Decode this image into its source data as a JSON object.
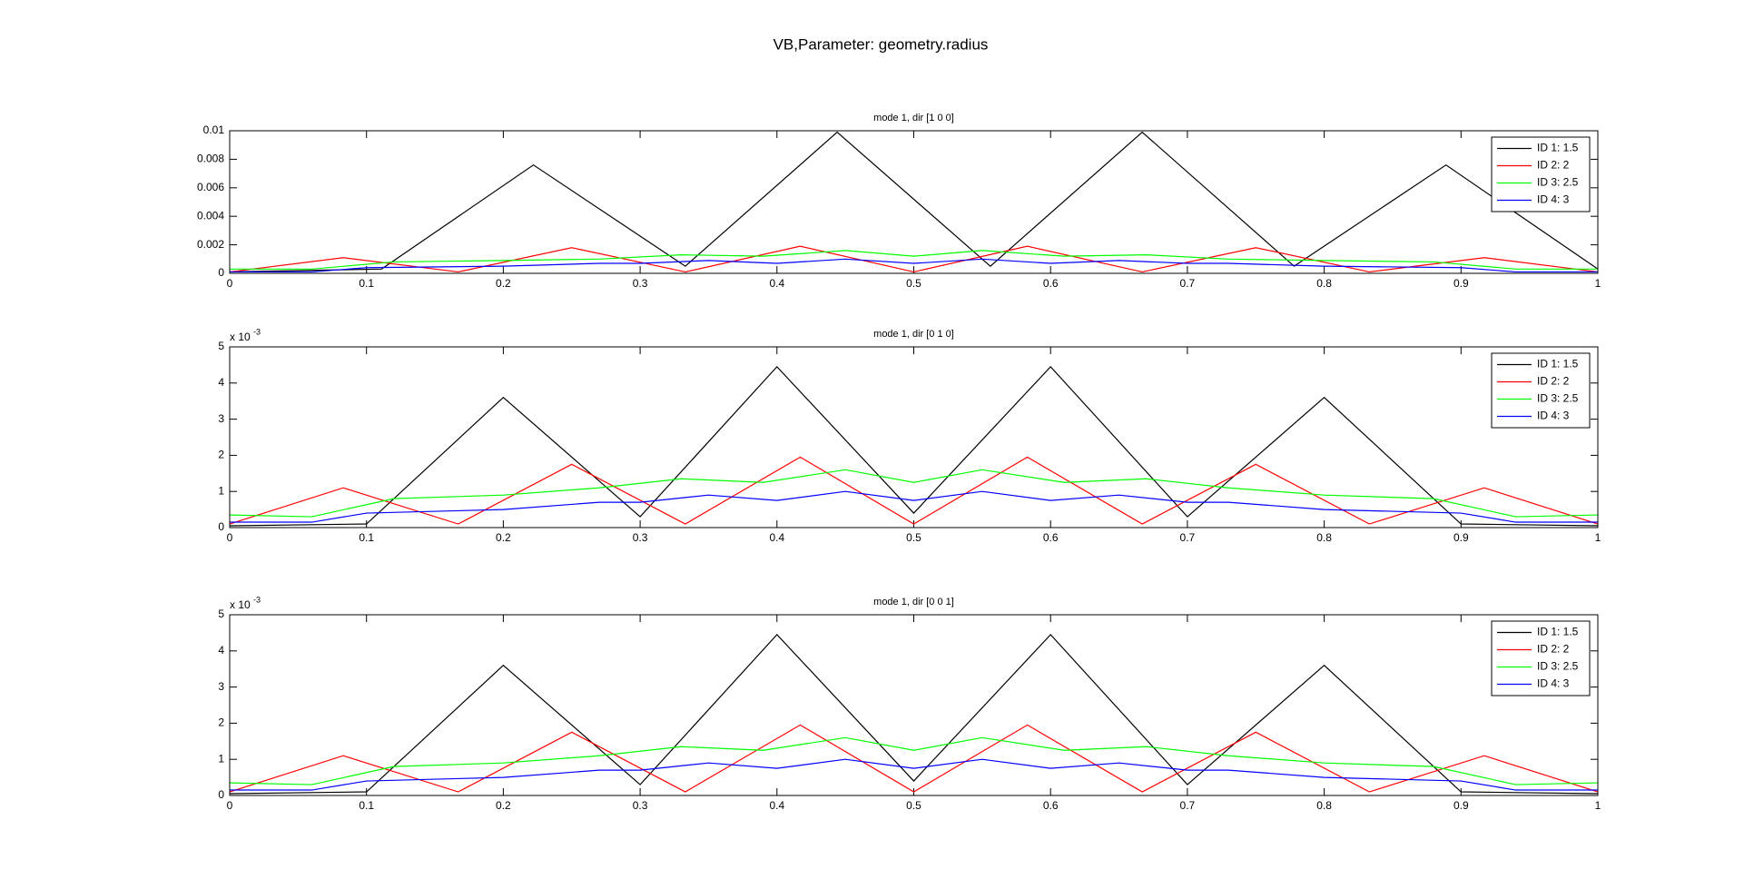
{
  "title": "VB,Parameter: geometry.radius",
  "chart_data": [
    {
      "type": "line",
      "title": "mode 1, dir [1 0 0]",
      "xlim": [
        0,
        1
      ],
      "ylim": [
        0,
        0.01
      ],
      "xticks": [
        0,
        0.1,
        0.2,
        0.3,
        0.4,
        0.5,
        0.6,
        0.7,
        0.8,
        0.9,
        1
      ],
      "yticks": [
        0,
        0.002,
        0.004,
        0.006,
        0.008,
        0.01
      ],
      "legend": "northeast",
      "series": [
        {
          "name": "ID 1: 1.5",
          "color": "#000000",
          "x": [
            0,
            0.111,
            0.222,
            0.333,
            0.444,
            0.556,
            0.667,
            0.778,
            0.889,
            1
          ],
          "values": [
            0.0001,
            0.0003,
            0.0076,
            0.0005,
            0.0099,
            0.0005,
            0.0099,
            0.0005,
            0.0076,
            0.0003
          ]
        },
        {
          "name": "ID 2: 2",
          "color": "#ff0000",
          "x": [
            0,
            0.083,
            0.167,
            0.25,
            0.333,
            0.417,
            0.5,
            0.583,
            0.667,
            0.75,
            0.833,
            0.917,
            1
          ],
          "values": [
            0.0001,
            0.0011,
            0.0001,
            0.0018,
            0.0001,
            0.0019,
            0.0001,
            0.0019,
            0.0001,
            0.0018,
            0.0001,
            0.0011,
            0.0001
          ]
        },
        {
          "name": "ID 3: 2.5",
          "color": "#00ff00",
          "x": [
            0,
            0.06,
            0.12,
            0.2,
            0.27,
            0.33,
            0.39,
            0.45,
            0.5,
            0.55,
            0.61,
            0.67,
            0.73,
            0.8,
            0.88,
            0.94,
            1
          ],
          "values": [
            0.0003,
            0.0003,
            0.0008,
            0.0009,
            0.001,
            0.0013,
            0.0012,
            0.0016,
            0.0012,
            0.0016,
            0.0012,
            0.0013,
            0.001,
            0.0009,
            0.0008,
            0.0003,
            0.0003
          ]
        },
        {
          "name": "ID 4: 3",
          "color": "#0000ff",
          "x": [
            0,
            0.06,
            0.1,
            0.2,
            0.27,
            0.3,
            0.35,
            0.4,
            0.45,
            0.5,
            0.55,
            0.6,
            0.65,
            0.7,
            0.73,
            0.8,
            0.9,
            0.94,
            1
          ],
          "values": [
            0.0001,
            0.0001,
            0.0004,
            0.0005,
            0.0007,
            0.0007,
            0.0009,
            0.0007,
            0.001,
            0.0007,
            0.001,
            0.0007,
            0.0009,
            0.0007,
            0.0007,
            0.0005,
            0.0004,
            0.0001,
            0.0001
          ]
        }
      ]
    },
    {
      "type": "line",
      "title": "mode 1, dir [0 1 0]",
      "y_scale_base": "x 10",
      "y_scale_exponent": "-3",
      "xlim": [
        0,
        1
      ],
      "ylim": [
        0,
        5
      ],
      "xticks": [
        0,
        0.1,
        0.2,
        0.3,
        0.4,
        0.5,
        0.6,
        0.7,
        0.8,
        0.9,
        1
      ],
      "yticks": [
        0,
        1,
        2,
        3,
        4,
        5
      ],
      "legend": "northeast",
      "series": [
        {
          "name": "ID 1: 1.5",
          "color": "#000000",
          "x": [
            0,
            0.1,
            0.2,
            0.3,
            0.4,
            0.5,
            0.6,
            0.7,
            0.8,
            0.9,
            1
          ],
          "values": [
            0.05,
            0.1,
            3.6,
            0.3,
            4.45,
            0.4,
            4.45,
            0.3,
            3.6,
            0.1,
            0.05
          ]
        },
        {
          "name": "ID 2: 2",
          "color": "#ff0000",
          "x": [
            0,
            0.083,
            0.167,
            0.25,
            0.333,
            0.417,
            0.5,
            0.583,
            0.667,
            0.75,
            0.833,
            0.917,
            1
          ],
          "values": [
            0.1,
            1.1,
            0.1,
            1.75,
            0.1,
            1.95,
            0.1,
            1.95,
            0.1,
            1.75,
            0.1,
            1.1,
            0.1
          ]
        },
        {
          "name": "ID 3: 2.5",
          "color": "#00ff00",
          "x": [
            0,
            0.06,
            0.12,
            0.2,
            0.27,
            0.33,
            0.39,
            0.45,
            0.5,
            0.55,
            0.61,
            0.67,
            0.73,
            0.8,
            0.88,
            0.94,
            1
          ],
          "values": [
            0.35,
            0.3,
            0.8,
            0.9,
            1.1,
            1.35,
            1.25,
            1.6,
            1.25,
            1.6,
            1.25,
            1.35,
            1.1,
            0.9,
            0.8,
            0.3,
            0.35
          ]
        },
        {
          "name": "ID 4: 3",
          "color": "#0000ff",
          "x": [
            0,
            0.06,
            0.1,
            0.2,
            0.27,
            0.3,
            0.35,
            0.4,
            0.45,
            0.5,
            0.55,
            0.6,
            0.65,
            0.7,
            0.73,
            0.8,
            0.9,
            0.94,
            1
          ],
          "values": [
            0.15,
            0.15,
            0.4,
            0.5,
            0.7,
            0.7,
            0.9,
            0.75,
            1.0,
            0.75,
            1.0,
            0.75,
            0.9,
            0.7,
            0.7,
            0.5,
            0.4,
            0.15,
            0.15
          ]
        }
      ]
    },
    {
      "type": "line",
      "title": "mode 1, dir [0 0 1]",
      "y_scale_base": "x 10",
      "y_scale_exponent": "-3",
      "xlim": [
        0,
        1
      ],
      "ylim": [
        0,
        5
      ],
      "xticks": [
        0,
        0.1,
        0.2,
        0.3,
        0.4,
        0.5,
        0.6,
        0.7,
        0.8,
        0.9,
        1
      ],
      "yticks": [
        0,
        1,
        2,
        3,
        4,
        5
      ],
      "legend": "northeast",
      "series": [
        {
          "name": "ID 1: 1.5",
          "color": "#000000",
          "x": [
            0,
            0.1,
            0.2,
            0.3,
            0.4,
            0.5,
            0.6,
            0.7,
            0.8,
            0.9,
            1
          ],
          "values": [
            0.05,
            0.1,
            3.6,
            0.3,
            4.45,
            0.4,
            4.45,
            0.3,
            3.6,
            0.1,
            0.05
          ]
        },
        {
          "name": "ID 2: 2",
          "color": "#ff0000",
          "x": [
            0,
            0.083,
            0.167,
            0.25,
            0.333,
            0.417,
            0.5,
            0.583,
            0.667,
            0.75,
            0.833,
            0.917,
            1
          ],
          "values": [
            0.1,
            1.1,
            0.1,
            1.75,
            0.1,
            1.95,
            0.1,
            1.95,
            0.1,
            1.75,
            0.1,
            1.1,
            0.1
          ]
        },
        {
          "name": "ID 3: 2.5",
          "color": "#00ff00",
          "x": [
            0,
            0.06,
            0.12,
            0.2,
            0.27,
            0.33,
            0.39,
            0.45,
            0.5,
            0.55,
            0.61,
            0.67,
            0.73,
            0.8,
            0.88,
            0.94,
            1
          ],
          "values": [
            0.35,
            0.3,
            0.8,
            0.9,
            1.1,
            1.35,
            1.25,
            1.6,
            1.25,
            1.6,
            1.25,
            1.35,
            1.1,
            0.9,
            0.8,
            0.3,
            0.35
          ]
        },
        {
          "name": "ID 4: 3",
          "color": "#0000ff",
          "x": [
            0,
            0.06,
            0.1,
            0.2,
            0.27,
            0.3,
            0.35,
            0.4,
            0.45,
            0.5,
            0.55,
            0.6,
            0.65,
            0.7,
            0.73,
            0.8,
            0.9,
            0.94,
            1
          ],
          "values": [
            0.15,
            0.15,
            0.4,
            0.5,
            0.7,
            0.7,
            0.9,
            0.75,
            1.0,
            0.75,
            1.0,
            0.75,
            0.9,
            0.7,
            0.7,
            0.5,
            0.4,
            0.15,
            0.15
          ]
        }
      ]
    }
  ]
}
